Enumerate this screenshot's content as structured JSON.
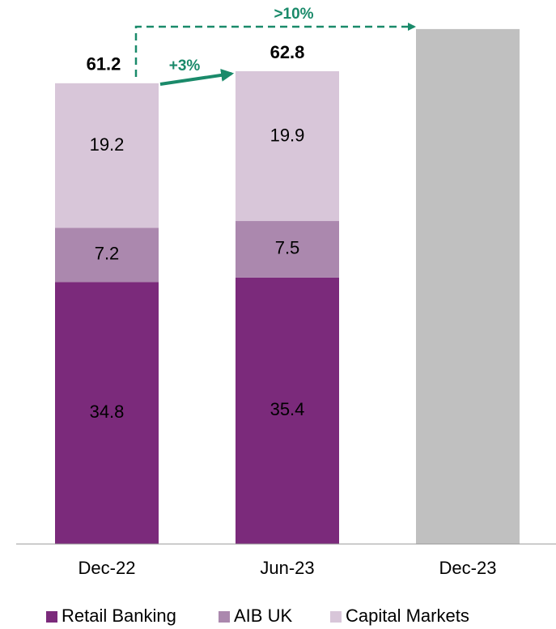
{
  "chart_data": {
    "type": "stacked_bar",
    "categories": [
      "Dec-22",
      "Jun-23",
      "Dec-23"
    ],
    "series": [
      {
        "name": "Retail Banking",
        "color": "#7b2a7b",
        "values": [
          34.8,
          35.4,
          null
        ]
      },
      {
        "name": "AIB UK",
        "color": "#ab88ae",
        "values": [
          7.2,
          7.5,
          null
        ]
      },
      {
        "name": "Capital Markets",
        "color": "#d8c6d9",
        "values": [
          19.2,
          19.9,
          null
        ]
      }
    ],
    "totals": [
      61.2,
      62.8,
      null
    ],
    "projection": {
      "category_index": 2,
      "value": 68.4,
      "color": "#c0c0c0"
    },
    "annotations": [
      "+3%",
      ">10%"
    ],
    "ylim": [
      0,
      70
    ],
    "legend": "bottom"
  }
}
